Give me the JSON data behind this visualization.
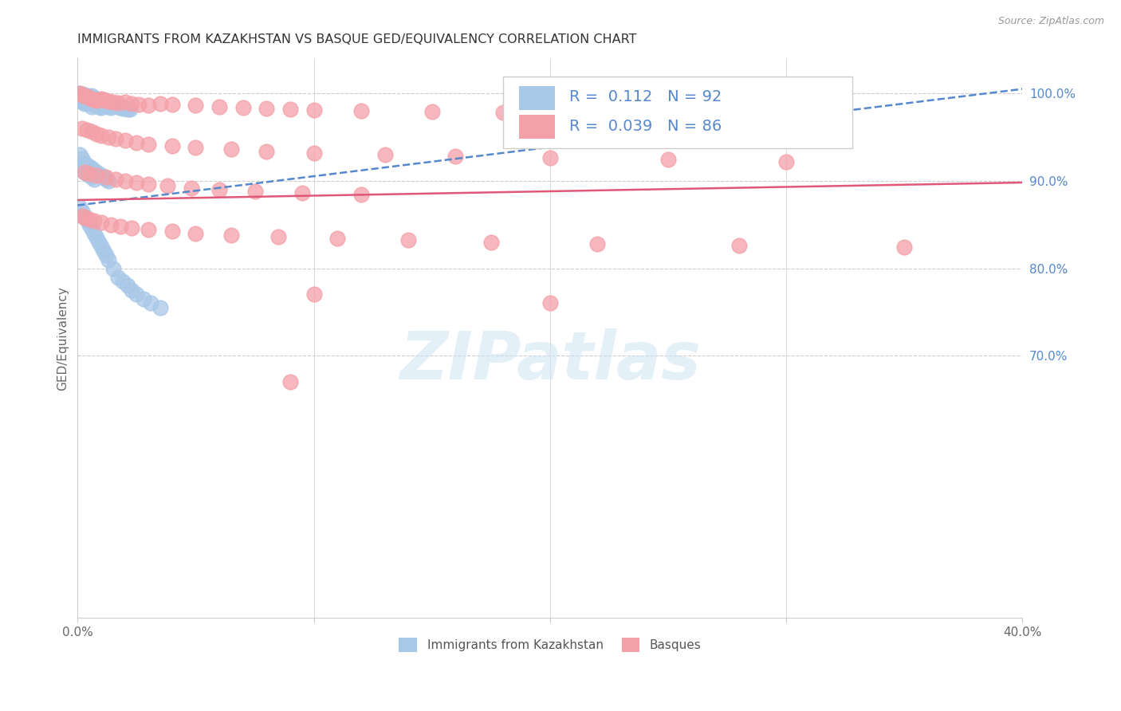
{
  "title": "IMMIGRANTS FROM KAZAKHSTAN VS BASQUE GED/EQUIVALENCY CORRELATION CHART",
  "source": "Source: ZipAtlas.com",
  "ylabel": "GED/Equivalency",
  "legend_label1": "Immigrants from Kazakhstan",
  "legend_label2": "Basques",
  "R1": 0.112,
  "N1": 92,
  "R2": 0.039,
  "N2": 86,
  "xlim": [
    0.0,
    0.4
  ],
  "ylim": [
    0.4,
    1.04
  ],
  "ytick_right_labels": [
    "100.0%",
    "90.0%",
    "80.0%",
    "70.0%"
  ],
  "ytick_right_values": [
    1.0,
    0.9,
    0.8,
    0.7
  ],
  "color_blue": "#A8C8E8",
  "color_pink": "#F4A0A8",
  "color_blue_line": "#5588CC",
  "color_pink_line": "#E05878",
  "watermark": "ZIPatlas",
  "title_fontsize": 11.5,
  "legend_fontsize": 14,
  "blue_trend_x0": 0.0,
  "blue_trend_y0": 0.872,
  "blue_trend_x1": 0.4,
  "blue_trend_y1": 1.005,
  "pink_trend_x0": 0.0,
  "pink_trend_y0": 0.878,
  "pink_trend_x1": 0.4,
  "pink_trend_y1": 0.898,
  "blue_x": [
    0.001,
    0.001,
    0.001,
    0.001,
    0.002,
    0.002,
    0.002,
    0.002,
    0.003,
    0.003,
    0.003,
    0.003,
    0.004,
    0.004,
    0.004,
    0.005,
    0.005,
    0.005,
    0.006,
    0.006,
    0.006,
    0.006,
    0.007,
    0.007,
    0.007,
    0.008,
    0.008,
    0.008,
    0.009,
    0.009,
    0.009,
    0.01,
    0.01,
    0.01,
    0.011,
    0.011,
    0.012,
    0.012,
    0.013,
    0.013,
    0.014,
    0.014,
    0.015,
    0.016,
    0.017,
    0.018,
    0.019,
    0.02,
    0.021,
    0.022,
    0.001,
    0.001,
    0.002,
    0.002,
    0.003,
    0.003,
    0.004,
    0.004,
    0.005,
    0.005,
    0.006,
    0.006,
    0.007,
    0.007,
    0.008,
    0.009,
    0.01,
    0.011,
    0.012,
    0.013,
    0.001,
    0.002,
    0.003,
    0.004,
    0.005,
    0.006,
    0.007,
    0.008,
    0.009,
    0.01,
    0.011,
    0.012,
    0.013,
    0.015,
    0.017,
    0.019,
    0.021,
    0.023,
    0.025,
    0.028,
    0.031,
    0.035
  ],
  "blue_y": [
    1.0,
    0.998,
    0.996,
    0.993,
    0.999,
    0.997,
    0.995,
    0.99,
    0.998,
    0.996,
    0.993,
    0.988,
    0.997,
    0.994,
    0.989,
    0.996,
    0.993,
    0.988,
    0.997,
    0.994,
    0.991,
    0.985,
    0.995,
    0.992,
    0.987,
    0.994,
    0.991,
    0.986,
    0.993,
    0.99,
    0.985,
    0.992,
    0.989,
    0.984,
    0.991,
    0.987,
    0.99,
    0.986,
    0.989,
    0.985,
    0.988,
    0.984,
    0.987,
    0.986,
    0.985,
    0.984,
    0.983,
    0.983,
    0.982,
    0.982,
    0.93,
    0.92,
    0.925,
    0.915,
    0.92,
    0.91,
    0.918,
    0.908,
    0.916,
    0.906,
    0.914,
    0.904,
    0.912,
    0.902,
    0.91,
    0.908,
    0.906,
    0.904,
    0.902,
    0.9,
    0.87,
    0.865,
    0.86,
    0.855,
    0.85,
    0.845,
    0.84,
    0.835,
    0.83,
    0.825,
    0.82,
    0.815,
    0.81,
    0.8,
    0.79,
    0.785,
    0.78,
    0.775,
    0.77,
    0.765,
    0.76,
    0.755
  ],
  "pink_x": [
    0.001,
    0.002,
    0.003,
    0.004,
    0.005,
    0.006,
    0.007,
    0.008,
    0.009,
    0.01,
    0.011,
    0.012,
    0.013,
    0.015,
    0.017,
    0.02,
    0.023,
    0.026,
    0.03,
    0.035,
    0.04,
    0.05,
    0.06,
    0.07,
    0.08,
    0.09,
    0.1,
    0.12,
    0.15,
    0.18,
    0.002,
    0.004,
    0.006,
    0.008,
    0.01,
    0.013,
    0.016,
    0.02,
    0.025,
    0.03,
    0.04,
    0.05,
    0.065,
    0.08,
    0.1,
    0.13,
    0.16,
    0.2,
    0.25,
    0.3,
    0.003,
    0.005,
    0.008,
    0.012,
    0.016,
    0.02,
    0.025,
    0.03,
    0.038,
    0.048,
    0.06,
    0.075,
    0.095,
    0.12,
    0.002,
    0.003,
    0.005,
    0.007,
    0.01,
    0.014,
    0.018,
    0.023,
    0.03,
    0.04,
    0.05,
    0.065,
    0.085,
    0.11,
    0.14,
    0.175,
    0.22,
    0.28,
    0.35,
    0.1,
    0.2,
    0.09
  ],
  "pink_y": [
    1.0,
    0.998,
    0.997,
    0.996,
    0.995,
    0.994,
    0.993,
    0.992,
    0.993,
    0.994,
    0.993,
    0.992,
    0.991,
    0.99,
    0.989,
    0.99,
    0.988,
    0.987,
    0.986,
    0.988,
    0.987,
    0.986,
    0.985,
    0.984,
    0.983,
    0.982,
    0.981,
    0.98,
    0.979,
    0.978,
    0.96,
    0.958,
    0.956,
    0.954,
    0.952,
    0.95,
    0.948,
    0.946,
    0.944,
    0.942,
    0.94,
    0.938,
    0.936,
    0.934,
    0.932,
    0.93,
    0.928,
    0.926,
    0.924,
    0.922,
    0.91,
    0.908,
    0.906,
    0.904,
    0.902,
    0.9,
    0.898,
    0.896,
    0.894,
    0.892,
    0.89,
    0.888,
    0.886,
    0.884,
    0.86,
    0.858,
    0.856,
    0.854,
    0.852,
    0.85,
    0.848,
    0.846,
    0.844,
    0.842,
    0.84,
    0.838,
    0.836,
    0.834,
    0.832,
    0.83,
    0.828,
    0.826,
    0.824,
    0.77,
    0.76,
    0.67
  ]
}
